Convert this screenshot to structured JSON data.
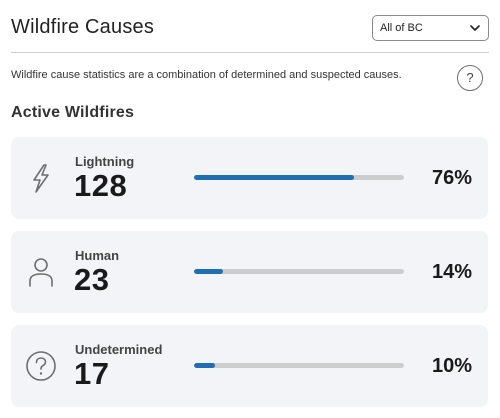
{
  "header": {
    "title": "Wildfire Causes",
    "region_select": {
      "selected": "All of BC"
    }
  },
  "info": {
    "text": "Wildfire cause statistics are a combination of determined and suspected causes.",
    "help_label": "?"
  },
  "section": {
    "title": "Active Wildfires"
  },
  "causes": [
    {
      "label": "Lightning",
      "count": "128",
      "percent": "76%",
      "fraction": 0.76,
      "icon": "lightning-icon"
    },
    {
      "label": "Human",
      "count": "23",
      "percent": "14%",
      "fraction": 0.14,
      "icon": "person-icon"
    },
    {
      "label": "Undetermined",
      "count": "17",
      "percent": "10%",
      "fraction": 0.1,
      "icon": "question-circle-icon"
    }
  ],
  "colors": {
    "bar_fill": "#1f6fb5",
    "bar_track": "#cdcdcd",
    "card_bg": "#f3f4f7"
  }
}
